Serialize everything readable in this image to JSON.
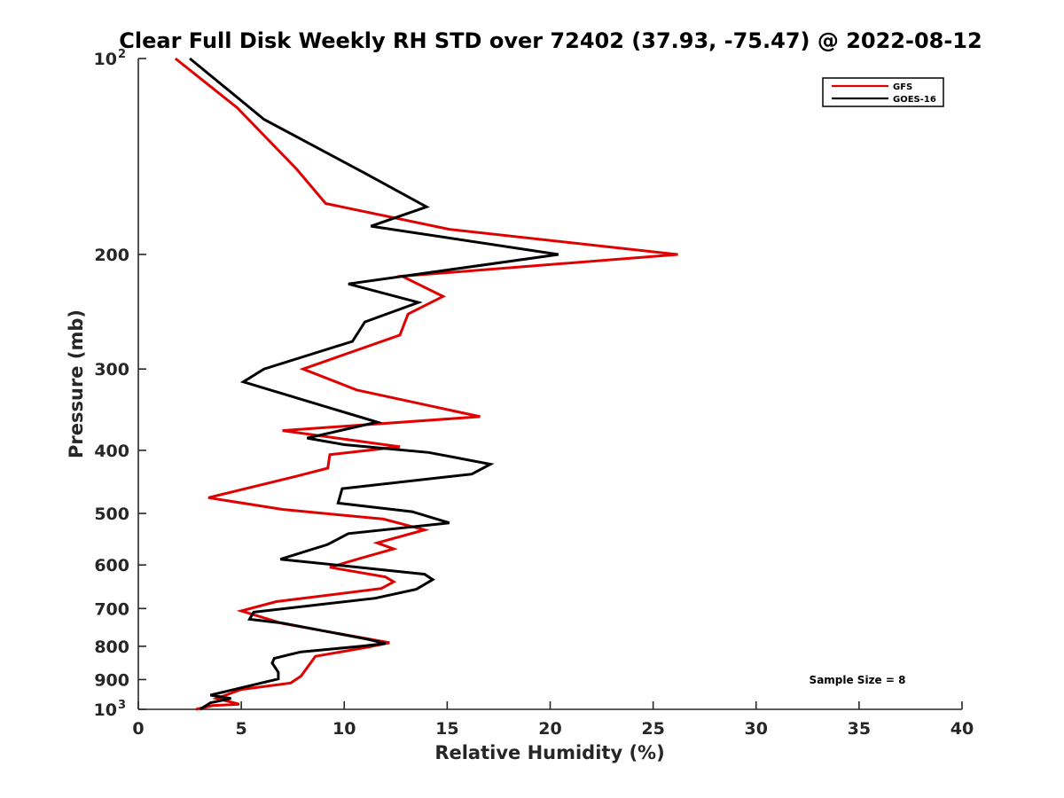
{
  "chart_data": {
    "type": "line",
    "title": "Clear Full Disk Weekly RH STD over 72402 (37.93, -75.47) @ 2022-08-12",
    "xlabel": "Relative Humidity (%)",
    "ylabel": "Pressure (mb)",
    "xlim": [
      0,
      40
    ],
    "ylim": [
      100,
      1000
    ],
    "yscale": "log",
    "y_reversed": true,
    "xticks": [
      0,
      5,
      10,
      15,
      20,
      25,
      30,
      35,
      40
    ],
    "yticks": [
      {
        "value": 100,
        "base": "10",
        "exp": "2"
      },
      {
        "value": 200,
        "label": "200"
      },
      {
        "value": 300,
        "label": "300"
      },
      {
        "value": 400,
        "label": "400"
      },
      {
        "value": 500,
        "label": "500"
      },
      {
        "value": 600,
        "label": "600"
      },
      {
        "value": 700,
        "label": "700"
      },
      {
        "value": 800,
        "label": "800"
      },
      {
        "value": 900,
        "label": "900"
      },
      {
        "value": 1000,
        "base": "10",
        "exp": "3"
      }
    ],
    "legend_position": "top-right",
    "annotation": "Sample Size = 8",
    "series": [
      {
        "name": "GFS",
        "color": "#e00000",
        "rh": [
          1.8,
          4.8,
          7.7,
          9.1,
          15.1,
          26.2,
          12.8,
          14.8,
          13.1,
          12.7,
          8.0,
          10.6,
          16.6,
          7.0,
          12.7,
          9.3,
          9.2,
          7.6,
          3.4,
          7.0,
          11.9,
          13.9,
          11.6,
          12.4,
          10.8,
          9.3,
          12.0,
          12.4,
          11.8,
          6.7,
          5.0,
          7.0,
          12.2,
          11.2,
          8.6,
          8.3,
          7.9,
          7.4,
          5.0,
          3.8,
          4.9,
          3.6,
          2.8
        ],
        "p": [
          100,
          119,
          148,
          167,
          183,
          200,
          216,
          232,
          247,
          266,
          300,
          323,
          355,
          373,
          395,
          406,
          426,
          439,
          473,
          493,
          510,
          530,
          555,
          567,
          586,
          605,
          626,
          637,
          652,
          683,
          706,
          738,
          790,
          802,
          829,
          854,
          889,
          911,
          932,
          962,
          982,
          987,
          1000
        ]
      },
      {
        "name": "GOES-16",
        "color": "#000000",
        "rh": [
          2.5,
          6.1,
          11.0,
          14.0,
          11.3,
          20.4,
          10.2,
          13.6,
          11.0,
          10.4,
          6.1,
          5.1,
          11.6,
          8.2,
          10.0,
          14.1,
          17.1,
          16.2,
          9.9,
          9.7,
          13.3,
          15.1,
          10.2,
          9.2,
          6.9,
          13.9,
          14.3,
          13.5,
          11.5,
          5.6,
          5.4,
          7.0,
          11.1,
          12.0,
          10.8,
          7.9,
          7.4,
          6.6,
          6.5,
          6.8,
          6.8,
          3.5,
          4.5,
          3.5,
          3.0
        ],
        "p": [
          100,
          124,
          150,
          169,
          181,
          200,
          222,
          237,
          254,
          272,
          300,
          314,
          362,
          383,
          392,
          403,
          420,
          435,
          458,
          482,
          497,
          517,
          537,
          558,
          588,
          620,
          632,
          654,
          675,
          709,
          727,
          737,
          780,
          792,
          800,
          816,
          823,
          835,
          849,
          877,
          898,
          951,
          962,
          977,
          1000
        ]
      }
    ]
  }
}
